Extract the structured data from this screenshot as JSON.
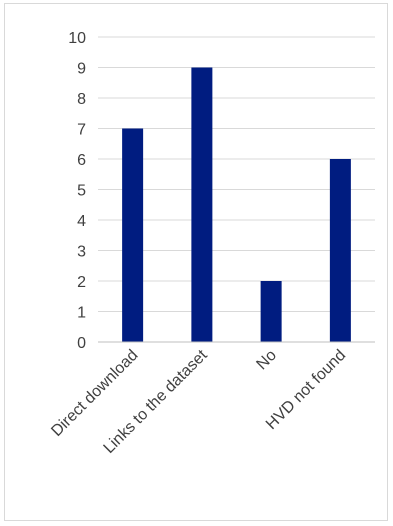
{
  "chart_data": {
    "type": "bar",
    "categories": [
      "Direct download",
      "Links to the dataset",
      "No",
      "HVD not found"
    ],
    "values": [
      7,
      9,
      2,
      6
    ],
    "title": "",
    "xlabel": "",
    "ylabel": "",
    "ylim": [
      0,
      10
    ],
    "yticks": [
      "0",
      "1",
      "2",
      "3",
      "4",
      "5",
      "6",
      "7",
      "8",
      "9",
      "10"
    ],
    "grid": true,
    "legend": "none",
    "colors": {
      "bar": "#001C80",
      "grid": "#d9d9d9",
      "axis": "#bfbfbf",
      "text": "#404040"
    }
  }
}
